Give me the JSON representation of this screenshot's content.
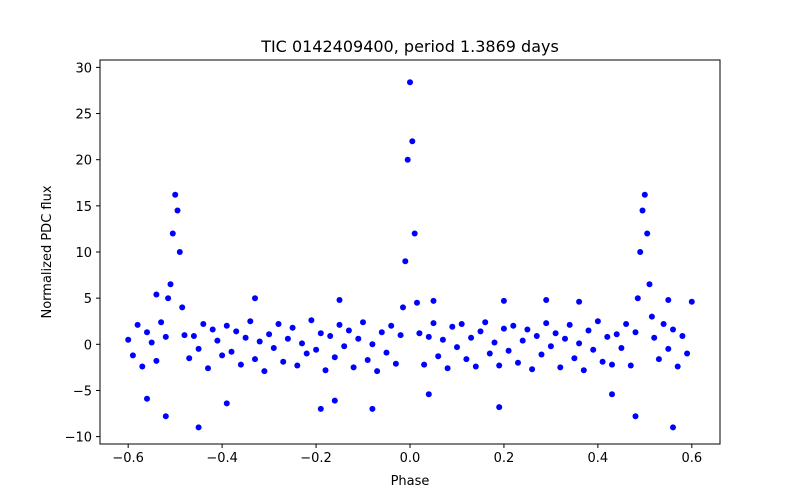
{
  "chart_data": {
    "type": "scatter",
    "title": "TIC 0142409400, period 1.3869 days",
    "xlabel": "Phase",
    "ylabel": "Normalized PDC flux",
    "xlim": [
      -0.66,
      0.66
    ],
    "ylim": [
      -10.8,
      30.8
    ],
    "xticks": [
      -0.6,
      -0.4,
      -0.2,
      0.0,
      0.2,
      0.4,
      0.6
    ],
    "xtick_labels": [
      "−0.6",
      "−0.4",
      "−0.2",
      "0.0",
      "0.2",
      "0.4",
      "0.6"
    ],
    "yticks": [
      -10,
      -5,
      0,
      5,
      10,
      15,
      20,
      25,
      30
    ],
    "ytick_labels": [
      "−10",
      "−5",
      "0",
      "5",
      "10",
      "15",
      "20",
      "25",
      "30"
    ],
    "grid": false,
    "legend": "none",
    "marker_color": "#0000ff",
    "series": [
      {
        "points": [
          [
            -0.6,
            0.5
          ],
          [
            -0.59,
            -1.2
          ],
          [
            -0.58,
            2.1
          ],
          [
            -0.57,
            -2.4
          ],
          [
            -0.56,
            1.3
          ],
          [
            -0.55,
            0.2
          ],
          [
            -0.54,
            -1.8
          ],
          [
            -0.53,
            2.4
          ],
          [
            -0.52,
            0.8
          ],
          [
            -0.515,
            5.0
          ],
          [
            -0.51,
            6.5
          ],
          [
            -0.505,
            12.0
          ],
          [
            -0.5,
            16.2
          ],
          [
            -0.495,
            14.5
          ],
          [
            -0.49,
            10.0
          ],
          [
            -0.485,
            4.0
          ],
          [
            -0.48,
            1.0
          ],
          [
            -0.47,
            -1.5
          ],
          [
            -0.46,
            0.9
          ],
          [
            -0.45,
            -0.5
          ],
          [
            -0.44,
            2.2
          ],
          [
            -0.43,
            -2.6
          ],
          [
            -0.42,
            1.6
          ],
          [
            -0.41,
            0.4
          ],
          [
            -0.4,
            -1.2
          ],
          [
            -0.39,
            2.0
          ],
          [
            -0.38,
            -0.8
          ],
          [
            -0.37,
            1.4
          ],
          [
            -0.36,
            -2.2
          ],
          [
            -0.35,
            0.7
          ],
          [
            -0.34,
            2.5
          ],
          [
            -0.33,
            -1.6
          ],
          [
            -0.32,
            0.3
          ],
          [
            -0.31,
            -2.9
          ],
          [
            -0.3,
            1.1
          ],
          [
            -0.29,
            -0.4
          ],
          [
            -0.28,
            2.2
          ],
          [
            -0.27,
            -1.9
          ],
          [
            -0.26,
            0.6
          ],
          [
            -0.25,
            1.8
          ],
          [
            -0.24,
            -2.3
          ],
          [
            -0.23,
            0.1
          ],
          [
            -0.22,
            -1.0
          ],
          [
            -0.21,
            2.6
          ],
          [
            -0.2,
            -0.6
          ],
          [
            -0.19,
            1.2
          ],
          [
            -0.18,
            -2.8
          ],
          [
            -0.17,
            0.9
          ],
          [
            -0.16,
            -1.4
          ],
          [
            -0.15,
            2.1
          ],
          [
            -0.14,
            -0.2
          ],
          [
            -0.13,
            1.5
          ],
          [
            -0.12,
            -2.5
          ],
          [
            -0.11,
            0.6
          ],
          [
            -0.1,
            2.4
          ],
          [
            -0.09,
            -1.7
          ],
          [
            -0.08,
            0.0
          ],
          [
            -0.07,
            -2.9
          ],
          [
            -0.06,
            1.3
          ],
          [
            -0.05,
            -0.9
          ],
          [
            -0.04,
            2.0
          ],
          [
            -0.03,
            -2.1
          ],
          [
            -0.02,
            1.0
          ],
          [
            -0.015,
            4.0
          ],
          [
            -0.01,
            9.0
          ],
          [
            -0.005,
            20.0
          ],
          [
            0.0,
            28.4
          ],
          [
            0.005,
            22.0
          ],
          [
            0.01,
            12.0
          ],
          [
            0.015,
            4.5
          ],
          [
            0.02,
            1.2
          ],
          [
            0.03,
            -2.2
          ],
          [
            0.04,
            0.8
          ],
          [
            0.05,
            2.3
          ],
          [
            0.06,
            -1.3
          ],
          [
            0.07,
            0.5
          ],
          [
            0.08,
            -2.6
          ],
          [
            0.09,
            1.9
          ],
          [
            0.1,
            -0.3
          ],
          [
            0.11,
            2.2
          ],
          [
            0.12,
            -1.6
          ],
          [
            0.13,
            0.7
          ],
          [
            0.14,
            -2.4
          ],
          [
            0.15,
            1.4
          ],
          [
            0.16,
            2.4
          ],
          [
            0.17,
            -1.0
          ],
          [
            0.18,
            0.2
          ],
          [
            0.19,
            -2.3
          ],
          [
            0.2,
            1.7
          ],
          [
            0.21,
            -0.7
          ],
          [
            0.22,
            2.0
          ],
          [
            0.23,
            -2.0
          ],
          [
            0.24,
            0.4
          ],
          [
            0.25,
            1.6
          ],
          [
            0.26,
            -2.7
          ],
          [
            0.27,
            0.9
          ],
          [
            0.28,
            -1.1
          ],
          [
            0.29,
            2.3
          ],
          [
            0.3,
            -0.2
          ],
          [
            0.31,
            1.2
          ],
          [
            0.32,
            -2.5
          ],
          [
            0.33,
            0.6
          ],
          [
            0.34,
            2.1
          ],
          [
            0.35,
            -1.5
          ],
          [
            0.36,
            0.1
          ],
          [
            0.37,
            -2.8
          ],
          [
            0.38,
            1.5
          ],
          [
            0.39,
            -0.6
          ],
          [
            0.4,
            2.5
          ],
          [
            0.41,
            -1.9
          ],
          [
            0.42,
            0.8
          ],
          [
            0.43,
            -2.2
          ],
          [
            0.44,
            1.1
          ],
          [
            0.45,
            -0.4
          ],
          [
            0.46,
            2.2
          ],
          [
            0.47,
            -2.3
          ],
          [
            0.48,
            1.3
          ],
          [
            0.485,
            5.0
          ],
          [
            0.49,
            10.0
          ],
          [
            0.495,
            14.5
          ],
          [
            0.5,
            16.2
          ],
          [
            0.505,
            12.0
          ],
          [
            0.51,
            6.5
          ],
          [
            0.515,
            3.0
          ],
          [
            0.52,
            0.7
          ],
          [
            0.53,
            -1.6
          ],
          [
            0.54,
            2.2
          ],
          [
            0.55,
            -0.5
          ],
          [
            0.56,
            1.6
          ],
          [
            0.57,
            -2.4
          ],
          [
            0.58,
            0.9
          ],
          [
            0.59,
            -1.0
          ],
          [
            0.6,
            4.6
          ],
          [
            -0.56,
            -5.9
          ],
          [
            -0.52,
            -7.8
          ],
          [
            -0.45,
            -9.0
          ],
          [
            -0.39,
            -6.4
          ],
          [
            -0.19,
            -7.0
          ],
          [
            -0.16,
            -6.1
          ],
          [
            -0.08,
            -7.0
          ],
          [
            0.04,
            -5.4
          ],
          [
            0.19,
            -6.8
          ],
          [
            0.43,
            -5.4
          ],
          [
            0.48,
            -7.8
          ],
          [
            0.56,
            -9.0
          ],
          [
            -0.54,
            5.4
          ],
          [
            -0.33,
            5.0
          ],
          [
            -0.15,
            4.8
          ],
          [
            0.05,
            4.7
          ],
          [
            0.2,
            4.7
          ],
          [
            0.29,
            4.8
          ],
          [
            0.36,
            4.6
          ],
          [
            0.55,
            4.8
          ]
        ]
      }
    ]
  }
}
